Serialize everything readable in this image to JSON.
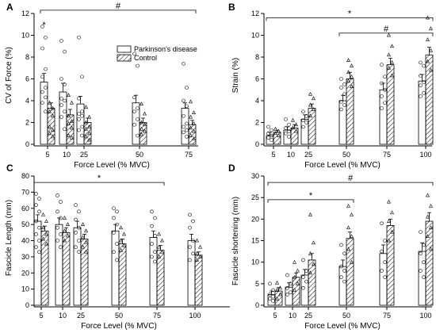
{
  "legend": {
    "series": [
      "Parkinson's disease",
      "Control"
    ]
  },
  "chart_data": [
    {
      "panel": "A",
      "type": "bar",
      "ylabel": "CV of Force (%)",
      "xlabel": "Force Level (% MVC)",
      "categories": [
        "5",
        "10",
        "25",
        "50",
        "75"
      ],
      "ylim": [
        0,
        12
      ],
      "yticks": [
        0,
        2,
        4,
        6,
        8,
        10,
        12
      ],
      "series": [
        {
          "name": "Parkinson's disease",
          "values": [
            5.7,
            4.8,
            3.7,
            3.8,
            3.3
          ],
          "errors": [
            0.8,
            0.8,
            0.7,
            0.7,
            0.5
          ],
          "points": [
            [
              10.8,
              9.8,
              8.8,
              6.9,
              6.2,
              5.2,
              4.8,
              4.3,
              3.8,
              3.0
            ],
            [
              9.5,
              8.5,
              6.0,
              5.5,
              4.2,
              4.0,
              3.6,
              3.0,
              2.5,
              1.4
            ],
            [
              9.8,
              6.2,
              4.2,
              3.0,
              2.8,
              2.6,
              2.3,
              1.6,
              1.3,
              0.8
            ],
            [
              8.3,
              7.2,
              4.3,
              3.3,
              3.0,
              2.3,
              1.8,
              0.8
            ],
            [
              7.4,
              5.2,
              4.0,
              3.5,
              2.6,
              1.9,
              1.6,
              1.3,
              1.1,
              0.7
            ]
          ]
        },
        {
          "name": "Control",
          "values": [
            3.3,
            2.7,
            2.0,
            2.0,
            1.8
          ],
          "errors": [
            0.5,
            0.5,
            0.4,
            0.4,
            0.4
          ],
          "points": [
            [
              3.8,
              3.3,
              3.0,
              2.6,
              1.6,
              1.3,
              1.0,
              0.7
            ],
            [
              4.5,
              3.8,
              2.6,
              2.1,
              1.9,
              1.5,
              0.8,
              0.6
            ],
            [
              3.4,
              2.5,
              2.0,
              1.6,
              1.4,
              1.0,
              0.7,
              0.4
            ],
            [
              3.7,
              2.8,
              2.0,
              1.8,
              1.4,
              1.2,
              0.9
            ],
            [
              3.9,
              2.9,
              2.5,
              1.9,
              1.5,
              1.2,
              0.8,
              0.5
            ]
          ]
        }
      ],
      "annotations": [
        {
          "text": "#",
          "from": "5",
          "to": "75",
          "y": 12.3
        },
        {
          "text": "*",
          "at": "5",
          "y": 11.0
        }
      ],
      "legend": "top-right"
    },
    {
      "panel": "B",
      "type": "bar",
      "ylabel": "Strain (%)",
      "xlabel": "Force Level (% MVC)",
      "categories": [
        "5",
        "10",
        "25",
        "50",
        "75",
        "100"
      ],
      "ylim": [
        0,
        12
      ],
      "yticks": [
        0,
        2,
        4,
        6,
        8,
        10,
        12
      ],
      "series": [
        {
          "name": "Parkinson's disease",
          "values": [
            0.8,
            1.3,
            2.3,
            4.0,
            5.0,
            5.8
          ],
          "errors": [
            0.3,
            0.3,
            0.4,
            0.5,
            0.6,
            0.6
          ],
          "points": [
            [
              1.6,
              1.3,
              1.0,
              0.8,
              0.6,
              0.4
            ],
            [
              2.3,
              1.8,
              1.5,
              1.2,
              1.0,
              0.7
            ],
            [
              3.0,
              2.6,
              2.2,
              2.0,
              1.6
            ],
            [
              6.0,
              5.5,
              5.2,
              4.6,
              3.9,
              3.6,
              3.2
            ],
            [
              7.3,
              6.2,
              5.6,
              5.0,
              4.4,
              3.8,
              3.3
            ],
            [
              7.5,
              7.2,
              6.3,
              5.7,
              5.4,
              4.7,
              4.4
            ]
          ]
        },
        {
          "name": "Control",
          "values": [
            1.1,
            1.5,
            3.3,
            6.0,
            7.3,
            8.2
          ],
          "errors": [
            0.2,
            0.3,
            0.4,
            0.6,
            0.6,
            0.7
          ],
          "points": [
            [
              1.4,
              1.2,
              1.0,
              0.8
            ],
            [
              2.2,
              1.8,
              1.5,
              1.2
            ],
            [
              4.6,
              4.2,
              3.6,
              3.2,
              2.6
            ],
            [
              7.7,
              7.2,
              6.6,
              6.2,
              5.8,
              5.3
            ],
            [
              10.0,
              9.0,
              8.2,
              7.5,
              7.0,
              6.3
            ],
            [
              11.6,
              10.6,
              9.6,
              8.6,
              7.6,
              6.8
            ]
          ]
        }
      ],
      "annotations": [
        {
          "text": "*",
          "from": "5",
          "to": "100",
          "y": 11.6
        },
        {
          "text": "#",
          "from": "50",
          "to": "100",
          "y": 10.2
        }
      ]
    },
    {
      "panel": "C",
      "type": "bar",
      "ylabel": "Fascicle Length (mm)",
      "xlabel": "Force Level (% MVC)",
      "categories": [
        "5",
        "10",
        "25",
        "50",
        "75",
        "100"
      ],
      "ylim": [
        0,
        80
      ],
      "yticks": [
        0,
        10,
        20,
        30,
        40,
        50,
        60,
        70,
        80
      ],
      "series": [
        {
          "name": "Parkinson's disease",
          "values": [
            52,
            50,
            48,
            46,
            42,
            40
          ],
          "errors": [
            4,
            4,
            4,
            4,
            4,
            4
          ],
          "points": [
            [
              69,
              66,
              62,
              58,
              52,
              48,
              44,
              40,
              36,
              33
            ],
            [
              68,
              64,
              58,
              54,
              48,
              44,
              40,
              36
            ],
            [
              62,
              58,
              53,
              48,
              45,
              40,
              36,
              33
            ],
            [
              60,
              58,
              54,
              50,
              45,
              38,
              33,
              28
            ],
            [
              58,
              54,
              49,
              43,
              38,
              33,
              30,
              27
            ],
            [
              56,
              52,
              48,
              40,
              36,
              32,
              28
            ]
          ]
        },
        {
          "name": "Control",
          "values": [
            46,
            45,
            41,
            38,
            34,
            31
          ],
          "errors": [
            3,
            3,
            3,
            3,
            3,
            2
          ],
          "points": [
            [
              56,
              52,
              48,
              44,
              41,
              38
            ],
            [
              54,
              50,
              46,
              43,
              40
            ],
            [
              50,
              46,
              42,
              39,
              36,
              33
            ],
            [
              48,
              44,
              40,
              37,
              34
            ],
            [
              44,
              40,
              36,
              33,
              30
            ],
            [
              40,
              36,
              32,
              30,
              28
            ]
          ]
        }
      ],
      "annotations": [
        {
          "text": "*",
          "from": "5",
          "to": "75",
          "y": 76
        }
      ]
    },
    {
      "panel": "D",
      "type": "bar",
      "ylabel": "Fascicle shortening (mm)",
      "xlabel": "Force Level (% MVC)",
      "categories": [
        "5",
        "10",
        "25",
        "50",
        "75",
        "100"
      ],
      "ylim": [
        0,
        30
      ],
      "yticks": [
        0,
        5,
        10,
        15,
        20,
        25,
        30
      ],
      "series": [
        {
          "name": "Parkinson's disease",
          "values": [
            2.5,
            4.2,
            7.0,
            9.0,
            12.0,
            12.5
          ],
          "errors": [
            0.8,
            1.0,
            1.3,
            1.5,
            2.0,
            2.0
          ],
          "points": [
            [
              5.0,
              3.5,
              2.5,
              2.0,
              1.5,
              1.0
            ],
            [
              7.0,
              5.0,
              4.0,
              3.0,
              2.5
            ],
            [
              10.5,
              8.0,
              6.5,
              5.5,
              4.0
            ],
            [
              14.0,
              12.0,
              9.0,
              8.0,
              6.5,
              5.5
            ],
            [
              19.0,
              15.0,
              12.5,
              10.0,
              8.0,
              6.5
            ],
            [
              17.0,
              14.0,
              12.0,
              10.0,
              8.0,
              6.5
            ]
          ]
        },
        {
          "name": "Control",
          "values": [
            3.3,
            6.5,
            10.5,
            15.5,
            18.5,
            19.5
          ],
          "errors": [
            0.8,
            1.0,
            1.5,
            1.5,
            1.5,
            2.0
          ],
          "points": [
            [
              5.2,
              4.0,
              3.5,
              2.5,
              1.5
            ],
            [
              10.0,
              8.0,
              6.5,
              5.0,
              3.5
            ],
            [
              21.0,
              14.5,
              12.0,
              9.5,
              7.5
            ],
            [
              23.0,
              21.0,
              18.0,
              16.0,
              13.0,
              10.0
            ],
            [
              24.0,
              21.5,
              19.5,
              17.0,
              15.0
            ],
            [
              25.5,
              23.0,
              20.5,
              18.0,
              16.0,
              13.0
            ]
          ]
        }
      ],
      "annotations": [
        {
          "text": "#",
          "from": "5",
          "to": "100",
          "y": 28.5
        },
        {
          "text": "*",
          "from": "5",
          "to": "50",
          "y": 24.5
        }
      ]
    }
  ]
}
